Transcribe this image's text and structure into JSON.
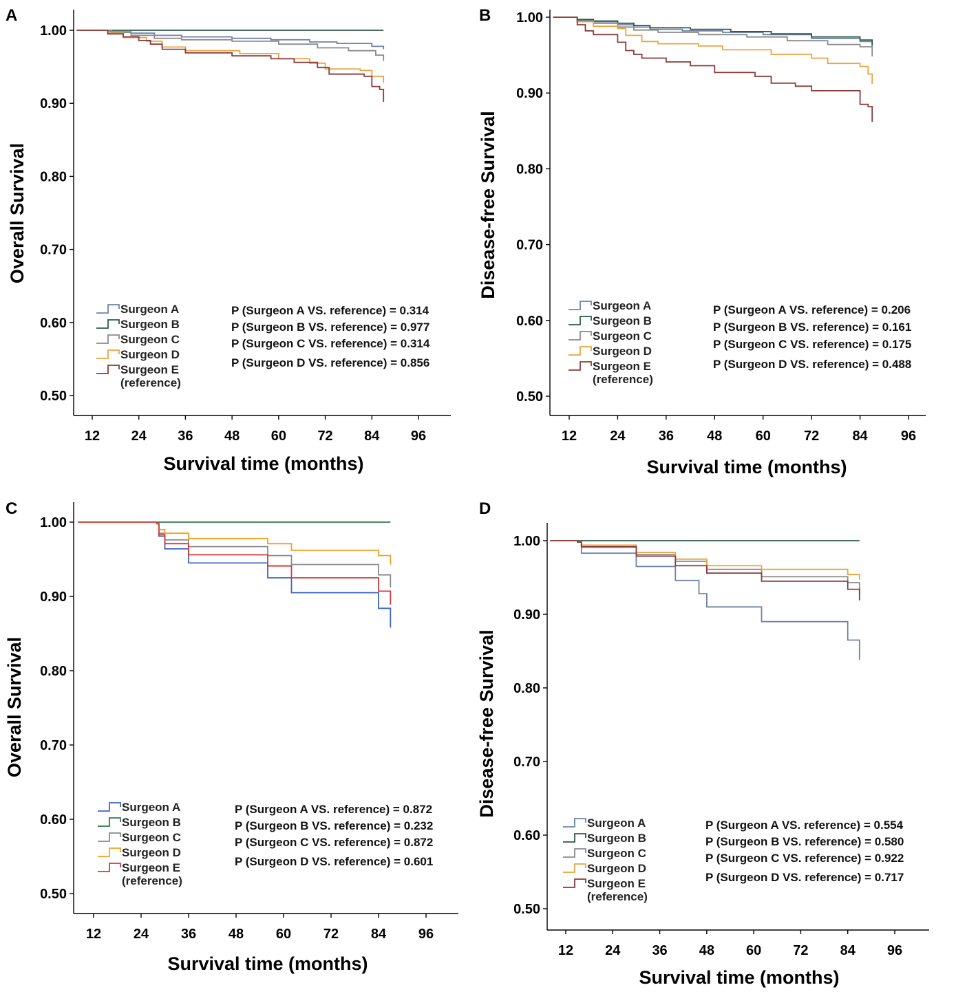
{
  "chart_data": [
    {
      "type": "line",
      "panel": "A",
      "ylabel": "Overall Survival",
      "xlabel": "Survival time (months)",
      "yticks": [
        "1.00",
        "0.90",
        "0.80",
        "0.70",
        "0.60",
        "0.50"
      ],
      "xticks": [
        "12",
        "24",
        "36",
        "48",
        "60",
        "72",
        "84",
        "96"
      ],
      "ylim": [
        0.5,
        1.0
      ],
      "legend": [
        "Surgeon A",
        "Surgeon B",
        "Surgeon C",
        "Surgeon D",
        "Surgeon E",
        "(reference)"
      ],
      "pvalues": [
        "P (Surgeon A VS. reference) = 0.314",
        "P (Surgeon B VS. reference) = 0.977",
        "P (Surgeon C VS. reference) = 0.314",
        "P (Surgeon D VS. reference) = 0.856"
      ],
      "series": [
        {
          "name": "Surgeon A",
          "color": "#6f82a8",
          "points": [
            [
              8,
              1.0
            ],
            [
              14,
              1.0
            ],
            [
              16,
              0.998
            ],
            [
              22,
              0.996
            ],
            [
              28,
              0.993
            ],
            [
              35,
              0.991
            ],
            [
              48,
              0.989
            ],
            [
              58,
              0.987
            ],
            [
              68,
              0.984
            ],
            [
              75,
              0.982
            ],
            [
              84,
              0.978
            ],
            [
              87,
              0.974
            ]
          ]
        },
        {
          "name": "Surgeon B",
          "color": "#2b5a45",
          "points": [
            [
              8,
              1.0
            ],
            [
              87,
              1.0
            ]
          ]
        },
        {
          "name": "Surgeon C",
          "color": "#8a8a8a",
          "points": [
            [
              8,
              1.0
            ],
            [
              14,
              1.0
            ],
            [
              17,
              0.997
            ],
            [
              22,
              0.993
            ],
            [
              28,
              0.989
            ],
            [
              35,
              0.987
            ],
            [
              48,
              0.985
            ],
            [
              60,
              0.981
            ],
            [
              70,
              0.976
            ],
            [
              78,
              0.972
            ],
            [
              85,
              0.966
            ],
            [
              87,
              0.958
            ]
          ]
        },
        {
          "name": "Surgeon D",
          "color": "#eba33f",
          "points": [
            [
              8,
              1.0
            ],
            [
              13,
              1.0
            ],
            [
              16,
              0.996
            ],
            [
              20,
              0.99
            ],
            [
              26,
              0.985
            ],
            [
              30,
              0.977
            ],
            [
              36,
              0.972
            ],
            [
              50,
              0.968
            ],
            [
              60,
              0.961
            ],
            [
              68,
              0.955
            ],
            [
              72,
              0.947
            ],
            [
              81,
              0.945
            ],
            [
              84,
              0.937
            ],
            [
              87,
              0.928
            ]
          ]
        },
        {
          "name": "Surgeon E (reference)",
          "color": "#8a3a3a",
          "points": [
            [
              8,
              1.0
            ],
            [
              13,
              1.0
            ],
            [
              16,
              0.995
            ],
            [
              20,
              0.991
            ],
            [
              24,
              0.986
            ],
            [
              27,
              0.981
            ],
            [
              30,
              0.974
            ],
            [
              36,
              0.969
            ],
            [
              48,
              0.965
            ],
            [
              58,
              0.961
            ],
            [
              64,
              0.956
            ],
            [
              70,
              0.949
            ],
            [
              73,
              0.94
            ],
            [
              82,
              0.937
            ],
            [
              84,
              0.923
            ],
            [
              86,
              0.919
            ],
            [
              87,
              0.902
            ]
          ]
        }
      ]
    },
    {
      "type": "line",
      "panel": "B",
      "ylabel": "Disease-free Survival",
      "xlabel": "Survival time (months)",
      "yticks": [
        "1.00",
        "0.90",
        "0.80",
        "0.70",
        "0.60",
        "0.50"
      ],
      "xticks": [
        "12",
        "24",
        "36",
        "48",
        "60",
        "72",
        "84",
        "96"
      ],
      "ylim": [
        0.5,
        1.0
      ],
      "legend": [
        "Surgeon A",
        "Surgeon B",
        "Surgeon C",
        "Surgeon D",
        "Surgeon E",
        "(reference)"
      ],
      "pvalues": [
        "P (Surgeon A VS. reference) = 0.206",
        "P (Surgeon B VS. reference) = 0.161",
        "P (Surgeon C VS. reference) = 0.175",
        "P (Surgeon D VS. reference) = 0.488"
      ],
      "series": [
        {
          "name": "Surgeon A",
          "color": "#6f82a8",
          "points": [
            [
              8,
              1.0
            ],
            [
              12,
              1.0
            ],
            [
              14,
              0.996
            ],
            [
              18,
              0.994
            ],
            [
              24,
              0.99
            ],
            [
              28,
              0.987
            ],
            [
              32,
              0.984
            ],
            [
              40,
              0.982
            ],
            [
              50,
              0.98
            ],
            [
              60,
              0.977
            ],
            [
              72,
              0.972
            ],
            [
              84,
              0.968
            ],
            [
              87,
              0.958
            ]
          ]
        },
        {
          "name": "Surgeon B",
          "color": "#2b5a45",
          "points": [
            [
              8,
              1.0
            ],
            [
              12,
              1.0
            ],
            [
              14,
              0.997
            ],
            [
              18,
              0.995
            ],
            [
              24,
              0.992
            ],
            [
              28,
              0.989
            ],
            [
              32,
              0.986
            ],
            [
              42,
              0.984
            ],
            [
              52,
              0.981
            ],
            [
              62,
              0.978
            ],
            [
              72,
              0.974
            ],
            [
              84,
              0.97
            ],
            [
              87,
              0.963
            ]
          ]
        },
        {
          "name": "Surgeon C",
          "color": "#8a8a8a",
          "points": [
            [
              8,
              1.0
            ],
            [
              12,
              1.0
            ],
            [
              14,
              0.995
            ],
            [
              18,
              0.992
            ],
            [
              24,
              0.987
            ],
            [
              28,
              0.983
            ],
            [
              34,
              0.98
            ],
            [
              44,
              0.977
            ],
            [
              56,
              0.974
            ],
            [
              66,
              0.969
            ],
            [
              76,
              0.964
            ],
            [
              84,
              0.961
            ],
            [
              87,
              0.948
            ]
          ]
        },
        {
          "name": "Surgeon D",
          "color": "#eba33f",
          "points": [
            [
              8,
              1.0
            ],
            [
              12,
              1.0
            ],
            [
              14,
              0.994
            ],
            [
              18,
              0.988
            ],
            [
              24,
              0.985
            ],
            [
              26,
              0.976
            ],
            [
              30,
              0.968
            ],
            [
              34,
              0.965
            ],
            [
              44,
              0.962
            ],
            [
              50,
              0.957
            ],
            [
              62,
              0.951
            ],
            [
              72,
              0.946
            ],
            [
              76,
              0.939
            ],
            [
              84,
              0.935
            ],
            [
              86,
              0.925
            ],
            [
              87,
              0.912
            ]
          ]
        },
        {
          "name": "Surgeon E (reference)",
          "color": "#8a3a3a",
          "points": [
            [
              8,
              1.0
            ],
            [
              12,
              1.0
            ],
            [
              14,
              0.99
            ],
            [
              16,
              0.982
            ],
            [
              18,
              0.977
            ],
            [
              24,
              0.967
            ],
            [
              26,
              0.956
            ],
            [
              28,
              0.951
            ],
            [
              30,
              0.946
            ],
            [
              36,
              0.941
            ],
            [
              42,
              0.936
            ],
            [
              48,
              0.927
            ],
            [
              58,
              0.922
            ],
            [
              62,
              0.913
            ],
            [
              68,
              0.909
            ],
            [
              72,
              0.903
            ],
            [
              84,
              0.885
            ],
            [
              86,
              0.882
            ],
            [
              87,
              0.862
            ]
          ]
        }
      ]
    },
    {
      "type": "line",
      "panel": "C",
      "ylabel": "Overall Survival",
      "xlabel": "Survival time (months)",
      "yticks": [
        "1.00",
        "0.90",
        "0.80",
        "0.70",
        "0.60",
        "0.50"
      ],
      "xticks": [
        "12",
        "24",
        "36",
        "48",
        "60",
        "72",
        "84",
        "96"
      ],
      "ylim": [
        0.5,
        1.0
      ],
      "legend": [
        "Surgeon A",
        "Surgeon B",
        "Surgeon C",
        "Surgeon D",
        "Surgeon E",
        "(reference)"
      ],
      "pvalues": [
        "P (Surgeon A VS. reference) = 0.872",
        "P (Surgeon B VS. reference) = 0.232",
        "P (Surgeon C VS. reference) = 0.872",
        "P (Surgeon D VS. reference) = 0.601"
      ],
      "series": [
        {
          "name": "Surgeon A",
          "color": "#3d64c8",
          "points": [
            [
              8,
              1.0
            ],
            [
              28,
              0.998
            ],
            [
              28.5,
              0.981
            ],
            [
              30,
              0.964
            ],
            [
              36,
              0.945
            ],
            [
              56,
              0.925
            ],
            [
              62,
              0.905
            ],
            [
              84,
              0.884
            ],
            [
              87,
              0.858
            ]
          ]
        },
        {
          "name": "Surgeon B",
          "color": "#2d7a4a",
          "points": [
            [
              8,
              1.0
            ],
            [
              87,
              1.0
            ]
          ]
        },
        {
          "name": "Surgeon C",
          "color": "#8a8a8a",
          "points": [
            [
              8,
              1.0
            ],
            [
              28,
              0.998
            ],
            [
              28.5,
              0.985
            ],
            [
              30,
              0.976
            ],
            [
              36,
              0.967
            ],
            [
              56,
              0.955
            ],
            [
              62,
              0.943
            ],
            [
              84,
              0.929
            ],
            [
              87,
              0.912
            ]
          ]
        },
        {
          "name": "Surgeon D",
          "color": "#f5a01f",
          "points": [
            [
              8,
              1.0
            ],
            [
              28,
              0.998
            ],
            [
              28.5,
              0.99
            ],
            [
              30,
              0.985
            ],
            [
              36,
              0.978
            ],
            [
              56,
              0.971
            ],
            [
              62,
              0.962
            ],
            [
              84,
              0.955
            ],
            [
              87,
              0.943
            ]
          ]
        },
        {
          "name": "Surgeon E (reference)",
          "color": "#d23a3a",
          "points": [
            [
              8,
              1.0
            ],
            [
              28,
              0.998
            ],
            [
              28.5,
              0.983
            ],
            [
              30,
              0.971
            ],
            [
              36,
              0.956
            ],
            [
              56,
              0.941
            ],
            [
              62,
              0.925
            ],
            [
              84,
              0.907
            ],
            [
              87,
              0.889
            ]
          ]
        }
      ]
    },
    {
      "type": "line",
      "panel": "D",
      "ylabel": "Disease-free Survival",
      "xlabel": "Survival time (months)",
      "yticks": [
        "1.00",
        "0.90",
        "0.80",
        "0.70",
        "0.60",
        "0.50"
      ],
      "xticks": [
        "12",
        "24",
        "36",
        "48",
        "60",
        "72",
        "84",
        "96"
      ],
      "ylim": [
        0.5,
        1.0
      ],
      "legend": [
        "Surgeon A",
        "Surgeon B",
        "Surgeon C",
        "Surgeon D",
        "Surgeon E",
        "(reference)"
      ],
      "pvalues": [
        "P (Surgeon A VS. reference) = 0.554",
        "P (Surgeon B VS. reference) = 0.580",
        "P (Surgeon C VS. reference) = 0.922",
        "P (Surgeon D VS. reference) = 0.717"
      ],
      "series": [
        {
          "name": "Surgeon A",
          "color": "#6f82a8",
          "points": [
            [
              8,
              1.0
            ],
            [
              15,
              0.998
            ],
            [
              16,
              0.983
            ],
            [
              30,
              0.965
            ],
            [
              40,
              0.946
            ],
            [
              46,
              0.928
            ],
            [
              48,
              0.91
            ],
            [
              62,
              0.89
            ],
            [
              84,
              0.865
            ],
            [
              87,
              0.838
            ]
          ]
        },
        {
          "name": "Surgeon B",
          "color": "#2b5a45",
          "points": [
            [
              8,
              1.0
            ],
            [
              87,
              1.0
            ]
          ]
        },
        {
          "name": "Surgeon C",
          "color": "#8a8a8a",
          "points": [
            [
              8,
              1.0
            ],
            [
              15,
              0.998
            ],
            [
              16,
              0.991
            ],
            [
              30,
              0.981
            ],
            [
              40,
              0.972
            ],
            [
              48,
              0.961
            ],
            [
              62,
              0.951
            ],
            [
              84,
              0.943
            ],
            [
              87,
              0.928
            ]
          ]
        },
        {
          "name": "Surgeon D",
          "color": "#eba33f",
          "points": [
            [
              8,
              1.0
            ],
            [
              15,
              0.998
            ],
            [
              16,
              0.994
            ],
            [
              30,
              0.984
            ],
            [
              40,
              0.975
            ],
            [
              48,
              0.966
            ],
            [
              62,
              0.961
            ],
            [
              84,
              0.954
            ],
            [
              87,
              0.947
            ]
          ]
        },
        {
          "name": "Surgeon E (reference)",
          "color": "#8a3a3a",
          "points": [
            [
              8,
              1.0
            ],
            [
              15,
              0.998
            ],
            [
              16,
              0.992
            ],
            [
              30,
              0.979
            ],
            [
              40,
              0.966
            ],
            [
              48,
              0.956
            ],
            [
              62,
              0.945
            ],
            [
              84,
              0.934
            ],
            [
              87,
              0.919
            ]
          ]
        }
      ]
    }
  ]
}
